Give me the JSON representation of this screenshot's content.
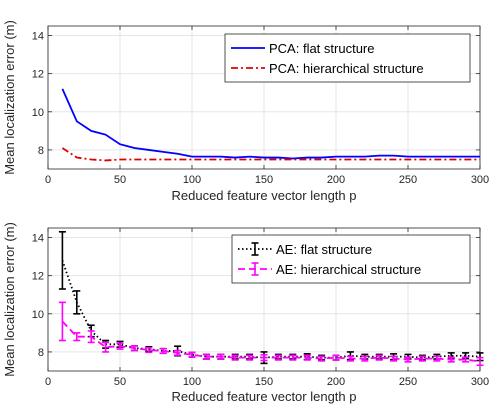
{
  "chart_data": [
    {
      "type": "line",
      "title": "",
      "xlabel": "Reduced feature vector length p",
      "ylabel": "Mean localization error (m)",
      "xlim": [
        0,
        300
      ],
      "ylim": [
        7,
        14.5
      ],
      "xticks": [
        0,
        50,
        100,
        150,
        200,
        250,
        300
      ],
      "yticks": [
        8,
        10,
        12,
        14
      ],
      "grid": true,
      "legend_position": "top-right",
      "series": [
        {
          "name": "PCA: flat structure",
          "color": "#0000ff",
          "dash": "solid",
          "x": [
            10,
            20,
            30,
            40,
            50,
            60,
            70,
            80,
            90,
            100,
            110,
            120,
            130,
            140,
            150,
            160,
            170,
            180,
            190,
            200,
            210,
            220,
            230,
            240,
            250,
            260,
            270,
            280,
            290,
            300
          ],
          "y": [
            11.2,
            9.5,
            9.0,
            8.8,
            8.3,
            8.1,
            8.0,
            7.9,
            7.8,
            7.65,
            7.65,
            7.65,
            7.6,
            7.65,
            7.6,
            7.6,
            7.55,
            7.6,
            7.6,
            7.65,
            7.65,
            7.65,
            7.7,
            7.7,
            7.65,
            7.65,
            7.65,
            7.65,
            7.65,
            7.65
          ]
        },
        {
          "name": "PCA: hierarchical structure",
          "color": "#e00000",
          "dash": "dashdot",
          "x": [
            10,
            20,
            30,
            40,
            50,
            60,
            70,
            80,
            90,
            100,
            110,
            120,
            130,
            140,
            150,
            160,
            170,
            180,
            190,
            200,
            210,
            220,
            230,
            240,
            250,
            260,
            270,
            280,
            290,
            300
          ],
          "y": [
            8.1,
            7.6,
            7.5,
            7.45,
            7.5,
            7.5,
            7.5,
            7.5,
            7.5,
            7.5,
            7.5,
            7.5,
            7.5,
            7.5,
            7.5,
            7.5,
            7.5,
            7.5,
            7.5,
            7.5,
            7.5,
            7.5,
            7.5,
            7.5,
            7.5,
            7.5,
            7.5,
            7.5,
            7.5,
            7.5
          ]
        }
      ]
    },
    {
      "type": "line",
      "title": "",
      "xlabel": "Reduced feature vector length p",
      "ylabel": "Mean localization error (m)",
      "xlim": [
        0,
        300
      ],
      "ylim": [
        7,
        14.5
      ],
      "xticks": [
        0,
        50,
        100,
        150,
        200,
        250,
        300
      ],
      "yticks": [
        8,
        10,
        12,
        14
      ],
      "grid": true,
      "legend_position": "top-right",
      "series": [
        {
          "name": "AE: flat structure",
          "color": "#000000",
          "dash": "dotted",
          "x": [
            10,
            20,
            30,
            40,
            50,
            60,
            70,
            80,
            90,
            100,
            110,
            120,
            130,
            140,
            150,
            160,
            170,
            180,
            190,
            200,
            210,
            220,
            230,
            240,
            250,
            260,
            270,
            280,
            290,
            300
          ],
          "y": [
            12.8,
            10.6,
            9.1,
            8.4,
            8.4,
            8.2,
            8.15,
            8.05,
            8.05,
            7.85,
            7.75,
            7.75,
            7.75,
            7.75,
            7.7,
            7.75,
            7.75,
            7.75,
            7.7,
            7.7,
            7.8,
            7.75,
            7.75,
            7.75,
            7.75,
            7.7,
            7.75,
            7.8,
            7.8,
            7.75
          ],
          "error": [
            1.5,
            0.6,
            0.3,
            0.2,
            0.15,
            0.12,
            0.12,
            0.12,
            0.25,
            0.12,
            0.12,
            0.12,
            0.12,
            0.12,
            0.3,
            0.12,
            0.12,
            0.15,
            0.12,
            0.12,
            0.2,
            0.12,
            0.12,
            0.15,
            0.12,
            0.12,
            0.12,
            0.15,
            0.15,
            0.2
          ]
        },
        {
          "name": "AE: hierarchical structure",
          "color": "#ff00ff",
          "dash": "dashed",
          "x": [
            10,
            20,
            30,
            40,
            50,
            60,
            70,
            80,
            90,
            100,
            110,
            120,
            130,
            140,
            150,
            160,
            170,
            180,
            190,
            200,
            210,
            220,
            230,
            240,
            250,
            260,
            270,
            280,
            290,
            300
          ],
          "y": [
            9.6,
            8.8,
            8.8,
            8.25,
            8.3,
            8.2,
            8.1,
            8.05,
            7.95,
            7.85,
            7.75,
            7.75,
            7.7,
            7.7,
            7.7,
            7.7,
            7.7,
            7.7,
            7.65,
            7.7,
            7.65,
            7.65,
            7.7,
            7.65,
            7.6,
            7.65,
            7.65,
            7.6,
            7.6,
            7.5
          ],
          "error": [
            1.0,
            0.2,
            0.3,
            0.25,
            0.15,
            0.12,
            0.12,
            0.12,
            0.12,
            0.12,
            0.12,
            0.12,
            0.12,
            0.12,
            0.15,
            0.12,
            0.12,
            0.12,
            0.12,
            0.12,
            0.12,
            0.12,
            0.12,
            0.12,
            0.12,
            0.12,
            0.12,
            0.12,
            0.12,
            0.2
          ]
        }
      ]
    }
  ]
}
